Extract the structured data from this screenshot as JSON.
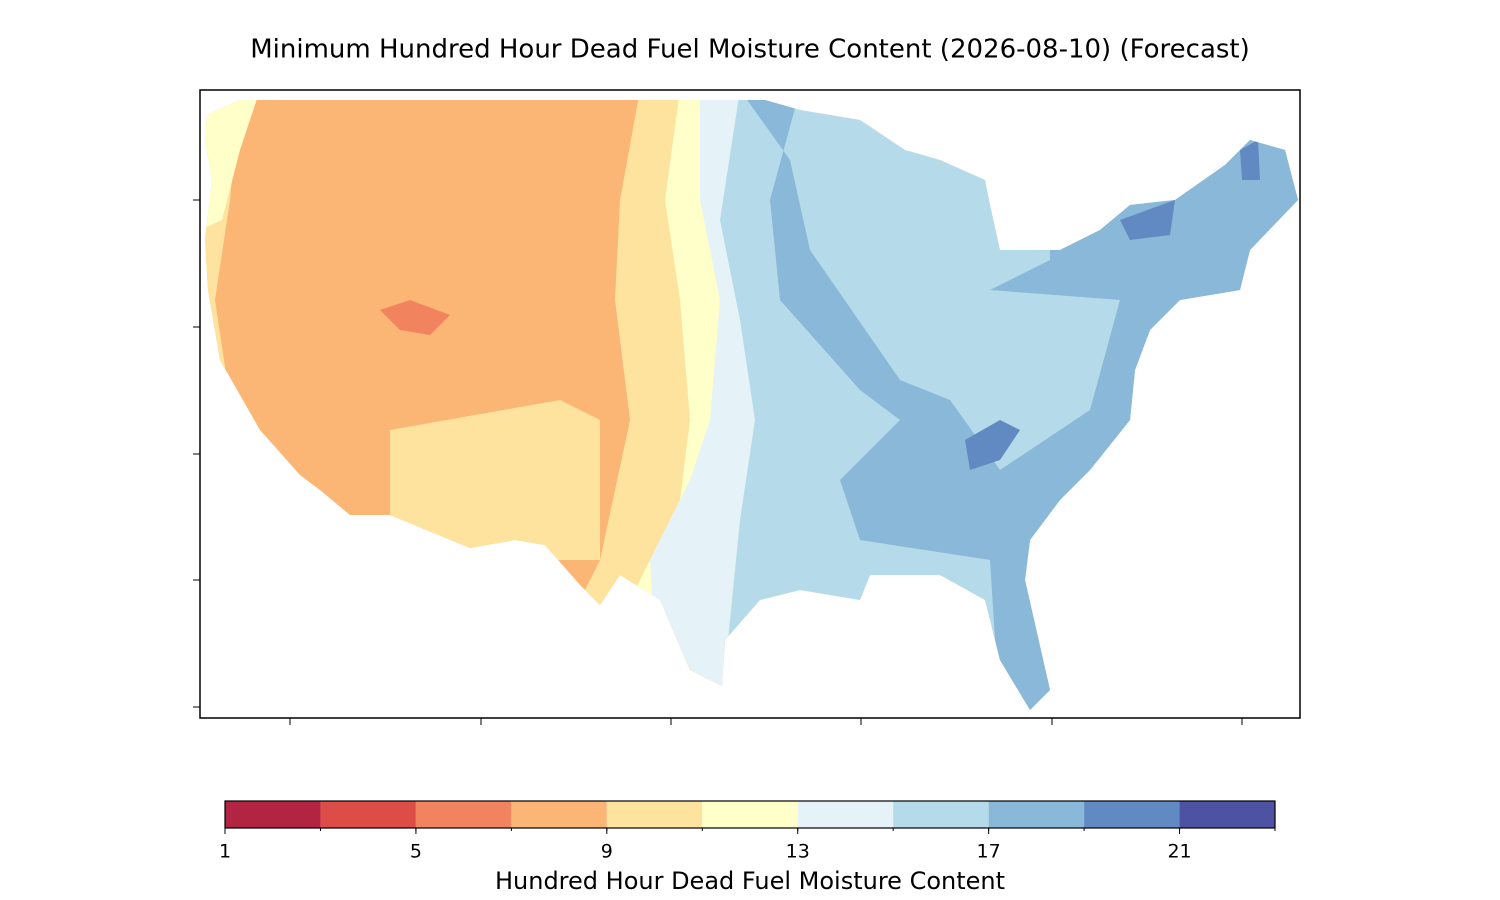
{
  "chart_data": {
    "type": "map",
    "title": "Minimum Hundred Hour Dead Fuel Moisture Content (2026-08-10) (Forecast)",
    "colorbar": {
      "label": "Hundred Hour Dead Fuel Moisture Content",
      "bounds": [
        1,
        3,
        5,
        7,
        9,
        11,
        13,
        15,
        17,
        19,
        21,
        23
      ],
      "colors": [
        "#b22442",
        "#dd4d48",
        "#f1845f",
        "#fbb574",
        "#fee39e",
        "#ffffc9",
        "#e5f2f7",
        "#b5dbea",
        "#89b8d8",
        "#6189c2",
        "#4e52a3"
      ],
      "ticks": [
        1,
        5,
        9,
        13,
        17,
        21
      ]
    }
  }
}
